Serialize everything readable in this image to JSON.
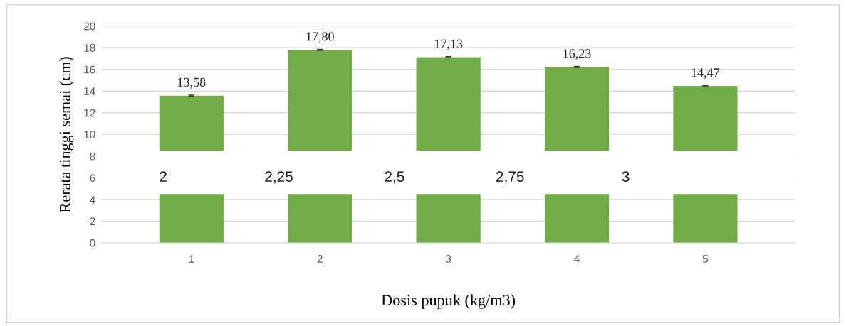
{
  "chart_data": {
    "type": "bar",
    "xlabel": "Dosis pupuk (kg/m3)",
    "ylabel": "Rerata tinggi semai (cm)",
    "categories": [
      "1",
      "2",
      "3",
      "4",
      "5"
    ],
    "values": [
      13.58,
      17.8,
      17.13,
      16.23,
      14.47
    ],
    "errors": [
      0.05,
      0.05,
      0.05,
      0.05,
      0.05
    ],
    "value_labels": [
      "13,58",
      "17,80",
      "17,13",
      "16,23",
      "14,47"
    ],
    "color": "#70ad47",
    "ylim": [
      0,
      20
    ],
    "yticks": [
      0,
      2,
      4,
      6,
      8,
      10,
      12,
      14,
      16,
      18,
      20
    ],
    "grid": "y",
    "bands": [
      {
        "axis": "y",
        "from": 4.5,
        "to": 8.5,
        "label": null,
        "color": "#ffffff"
      }
    ],
    "annotations": [
      "2",
      "2,25",
      "2,5",
      "2,75",
      "3"
    ]
  }
}
